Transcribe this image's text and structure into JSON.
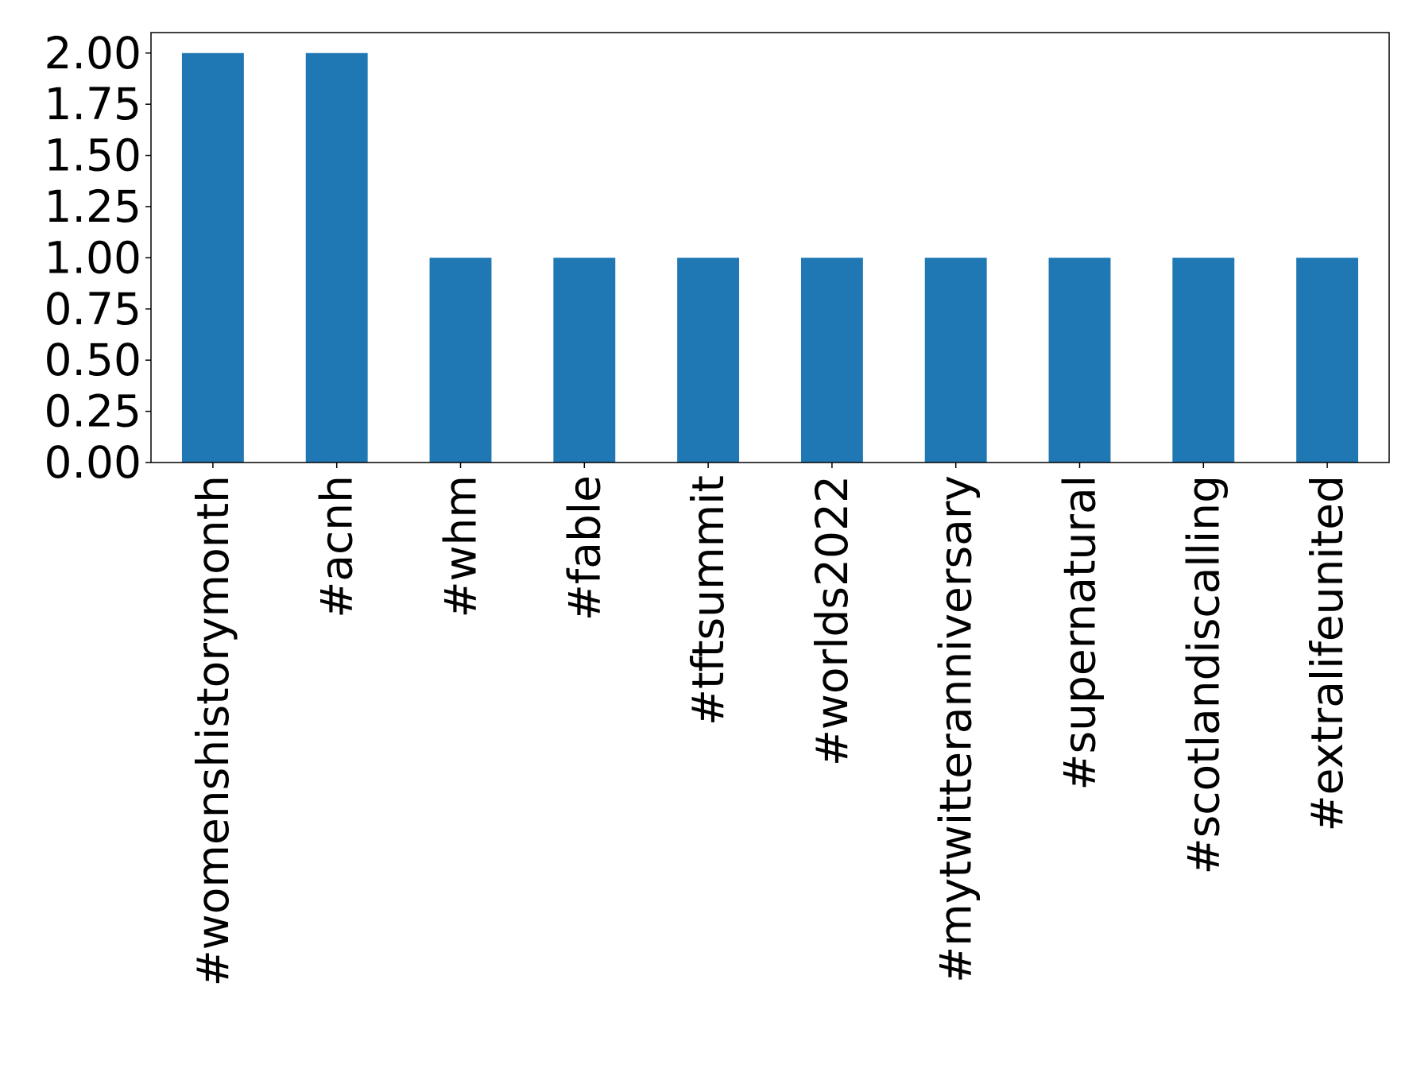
{
  "chart_data": {
    "type": "bar",
    "title": "",
    "xlabel": "",
    "ylabel": "",
    "categories": [
      "#womenshistorymonth",
      "#acnh",
      "#whm",
      "#fable",
      "#tftsummit",
      "#worlds2022",
      "#mytwitteranniversary",
      "#supernatural",
      "#scotlandiscalling",
      "#extralifeunited"
    ],
    "values": [
      2,
      2,
      1,
      1,
      1,
      1,
      1,
      1,
      1,
      1
    ],
    "ylim": [
      0,
      2.1
    ],
    "yticks": [
      "0.00",
      "0.25",
      "0.50",
      "0.75",
      "1.00",
      "1.25",
      "1.50",
      "1.75",
      "2.00"
    ],
    "bar_color": "#1f77b4",
    "grid": false,
    "legend": "none"
  }
}
